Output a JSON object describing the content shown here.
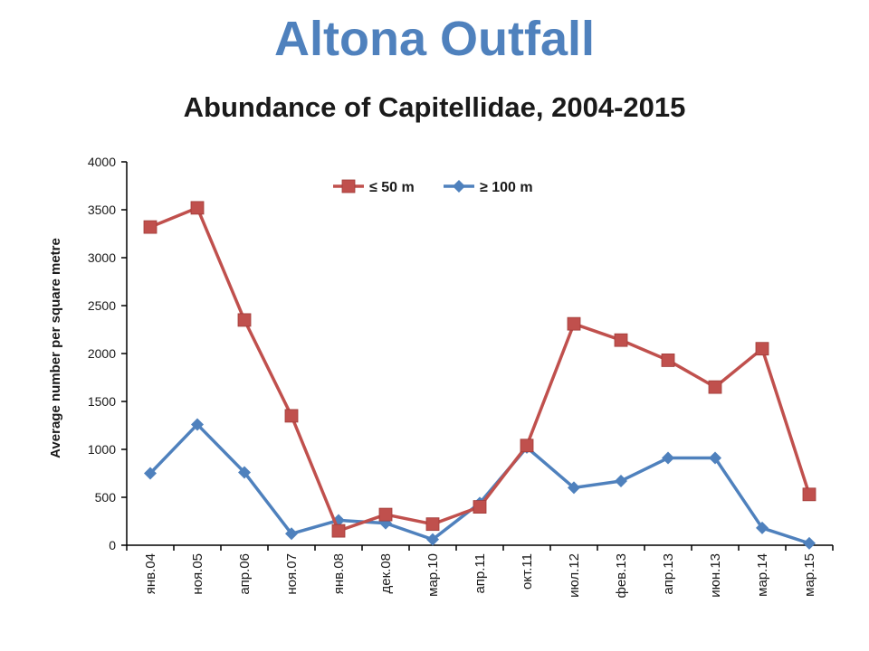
{
  "title": "Altona Outfall",
  "subtitle": "Abundance of Capitellidae, 2004-2015",
  "chart_data": {
    "type": "line",
    "ylabel": "Average number per square metre",
    "xlabel": "",
    "ylim": [
      0,
      4000
    ],
    "yticks": [
      0,
      500,
      1000,
      1500,
      2000,
      2500,
      3000,
      3500,
      4000
    ],
    "categories": [
      "янв.04",
      "ноя.05",
      "апр.06",
      "ноя.07",
      "янв.08",
      "дек.08",
      "мар.10",
      "апр.11",
      "окт.11",
      "июл.12",
      "фев.13",
      "апр.13",
      "июн.13",
      "мар.14",
      "мар.15"
    ],
    "legend_position": "top-center",
    "grid": false,
    "series": [
      {
        "name": "≤ 50 m",
        "color": "#c0504d",
        "marker": "square",
        "values": [
          3320,
          3520,
          2350,
          1350,
          150,
          320,
          220,
          400,
          1040,
          2310,
          2140,
          1930,
          1650,
          2050,
          530
        ]
      },
      {
        "name": "≥ 100 m",
        "color": "#4f81bd",
        "marker": "diamond",
        "values": [
          750,
          1260,
          760,
          120,
          260,
          230,
          60,
          440,
          1020,
          600,
          670,
          910,
          910,
          180,
          20
        ]
      }
    ]
  }
}
